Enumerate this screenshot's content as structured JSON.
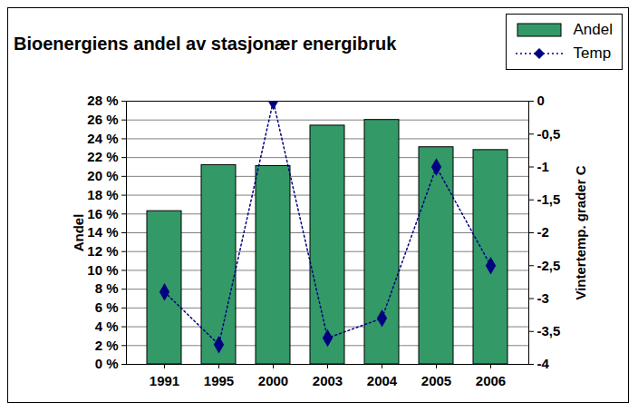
{
  "chart_data": {
    "type": "bar",
    "title": "Bioenergiens andel av stasjonær energibruk",
    "categories": [
      "1991",
      "1995",
      "2000",
      "2003",
      "2004",
      "2005",
      "2006"
    ],
    "ylabel": "Andel",
    "y2label": "Vintertemp. grader C",
    "series": [
      {
        "name": "Andel",
        "type": "bar",
        "color": "#339966",
        "values": [
          16.3,
          21.2,
          21.1,
          25.4,
          26.0,
          23.1,
          22.8
        ]
      },
      {
        "name": "Temp",
        "type": "line",
        "axis": "y2",
        "color": "#000080",
        "marker": "diamond",
        "line_style": "dotted",
        "values": [
          -2.9,
          -3.7,
          0,
          -3.6,
          -3.3,
          -1.0,
          -2.5
        ]
      }
    ],
    "ylim": [
      0,
      28
    ],
    "yticks": [
      {
        "value": 0,
        "label": "0 %"
      },
      {
        "value": 2,
        "label": "2 %"
      },
      {
        "value": 4,
        "label": "4 %"
      },
      {
        "value": 6,
        "label": "6 %"
      },
      {
        "value": 8,
        "label": "8 %"
      },
      {
        "value": 10,
        "label": "10 %"
      },
      {
        "value": 12,
        "label": "12 %"
      },
      {
        "value": 14,
        "label": "14 %"
      },
      {
        "value": 16,
        "label": "16 %"
      },
      {
        "value": 18,
        "label": "18 %"
      },
      {
        "value": 20,
        "label": "20 %"
      },
      {
        "value": 22,
        "label": "22 %"
      },
      {
        "value": 24,
        "label": "24 %"
      },
      {
        "value": 26,
        "label": "26 %"
      },
      {
        "value": 28,
        "label": "28 %"
      }
    ],
    "y2lim": [
      -4,
      0
    ],
    "y2ticks": [
      0,
      {
        "value": -0.5,
        "label": "-0,5"
      },
      -1,
      {
        "value": -1.5,
        "label": "-1,5"
      },
      -2,
      {
        "value": -2.5,
        "label": "-2,5"
      },
      -3,
      {
        "value": -3.5,
        "label": "-3,5"
      },
      -4
    ],
    "grid": true,
    "legend": "top-right"
  }
}
